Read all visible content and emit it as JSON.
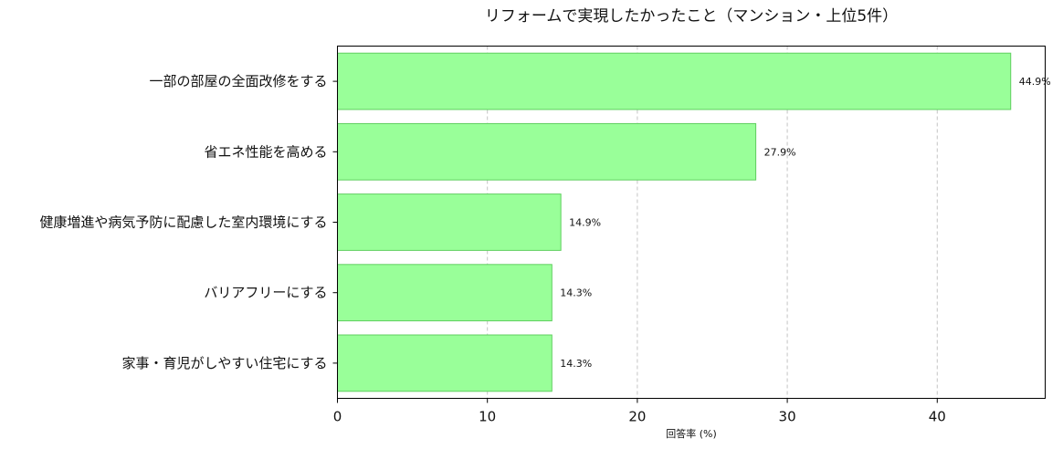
{
  "chart_data": {
    "type": "bar",
    "orientation": "horizontal",
    "title": "リフォームで実現したかったこと（マンション・上位5件）",
    "xlabel": "回答率 (%)",
    "ylabel": "",
    "xlim": [
      0,
      47.2
    ],
    "xticks": [
      0,
      10,
      20,
      30,
      40
    ],
    "grid": "x-dashed",
    "categories": [
      "一部の部屋の全面改修をする",
      "省エネ性能を高める",
      "健康増進や病気予防に配慮した室内環境にする",
      "バリアフリーにする",
      "家事・育児がしやすい住宅にする"
    ],
    "values": [
      44.9,
      27.9,
      14.9,
      14.3,
      14.3
    ],
    "value_labels": [
      "44.9%",
      "27.9%",
      "14.9%",
      "14.3%",
      "14.3%"
    ],
    "bar_color": "#99ff99",
    "bar_edge_color": "#5fcf5f"
  }
}
